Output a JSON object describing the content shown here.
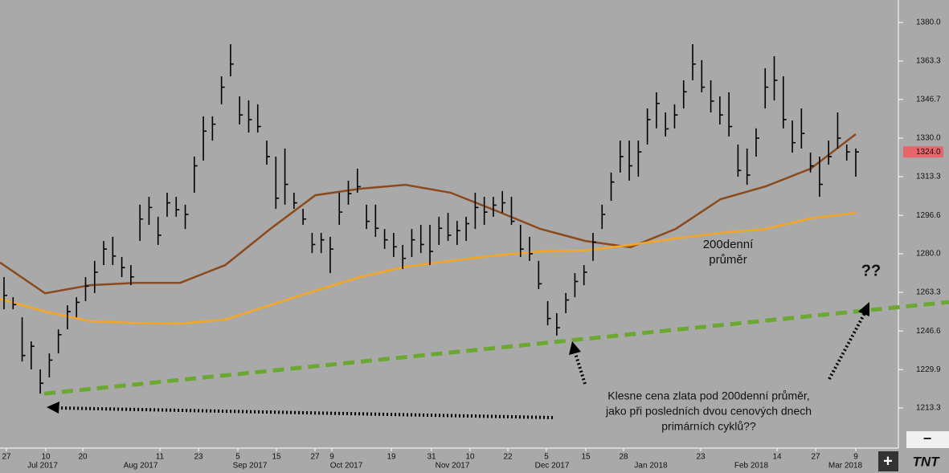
{
  "chart_data": {
    "type": "ohlc",
    "ylim": [
      1197.0,
      1389.7
    ],
    "yticks": [
      {
        "value": 1380,
        "label": "1380.0"
      },
      1363.3,
      1346.7,
      {
        "value": 1330,
        "label": "1330.0"
      },
      1313.3,
      1296.6,
      {
        "value": 1280,
        "label": "1280.0"
      },
      1263.3,
      1246.6,
      1229.9,
      1213.3
    ],
    "last_price": {
      "value": 1324,
      "label": "1324.0",
      "color": "#e8666b"
    },
    "bar_color": "#000000",
    "high": [
      1269.9,
      1261.2,
      1252.5,
      1242.1,
      1230.0,
      1236.9,
      1247.3,
      1257.7,
      1261.2,
      1269.9,
      1276.9,
      1285.5,
      1287.3,
      1278.6,
      1275.1,
      1301.2,
      1304.6,
      1296.0,
      1306.4,
      1304.6,
      1301.2,
      1322.0,
      1339.4,
      1339.4,
      1356.7,
      1370.6,
      1348.0,
      1346.3,
      1344.6,
      1328.9,
      1322.0,
      1325.5,
      1306.4,
      1299.4,
      1289.0,
      1289.0,
      1287.3,
      1306.4,
      1311.6,
      1316.8,
      1301.2,
      1301.2,
      1290.7,
      1289.0,
      1283.8,
      1290.7,
      1292.5,
      1292.5,
      1296.0,
      1297.7,
      1294.2,
      1296.0,
      1306.4,
      1304.6,
      1304.6,
      1307.1,
      1304.6,
      1292.5,
      1287.3,
      1276.9,
      1259.5,
      1254.3,
      1263.0,
      1271.6,
      1275.1,
      1289.0,
      1301.2,
      1315.1,
      1328.9,
      1328.9,
      1328.9,
      1342.8,
      1349.8,
      1341.1,
      1344.6,
      1355.0,
      1370.6,
      1363.7,
      1355.0,
      1348.0,
      1349.8,
      1327.2,
      1325.5,
      1334.2,
      1360.2,
      1365.4,
      1356.7,
      1337.6,
      1342.8,
      1323.7,
      1322.0,
      1328.9,
      1341.1,
      1327.2,
      1325.5
    ],
    "low": [
      1256.0,
      1256.0,
      1233.4,
      1230.0,
      1219.5,
      1226.5,
      1236.9,
      1247.3,
      1252.5,
      1259.5,
      1263.0,
      1275.1,
      1275.1,
      1269.9,
      1266.4,
      1285.5,
      1292.5,
      1283.8,
      1296.0,
      1296.0,
      1290.7,
      1306.4,
      1320.3,
      1328.9,
      1344.6,
      1356.7,
      1335.9,
      1332.4,
      1332.4,
      1318.5,
      1299.4,
      1301.2,
      1299.4,
      1292.5,
      1280.3,
      1280.3,
      1271.6,
      1292.5,
      1301.2,
      1306.4,
      1290.7,
      1287.3,
      1282.1,
      1278.6,
      1273.4,
      1278.6,
      1280.3,
      1275.1,
      1283.8,
      1285.5,
      1283.8,
      1285.5,
      1290.7,
      1292.5,
      1296.0,
      1297.7,
      1292.5,
      1278.6,
      1276.9,
      1264.7,
      1249.1,
      1244.6,
      1254.3,
      1261.2,
      1266.4,
      1276.9,
      1290.7,
      1302.9,
      1315.1,
      1311.6,
      1313.3,
      1327.2,
      1334.2,
      1330.7,
      1334.2,
      1342.8,
      1355.0,
      1349.8,
      1341.1,
      1335.9,
      1330.7,
      1313.3,
      1309.8,
      1322.0,
      1342.8,
      1346.3,
      1334.2,
      1323.7,
      1325.5,
      1315.1,
      1304.6,
      1318.5,
      1325.5,
      1320.3,
      1313.3
    ],
    "close": [
      1262,
      1258,
      1236,
      1240,
      1224,
      1234,
      1245,
      1255,
      1259,
      1266,
      1272,
      1282,
      1279,
      1274,
      1270,
      1295,
      1300,
      1288,
      1302,
      1299,
      1297,
      1318,
      1333,
      1336,
      1352,
      1362,
      1340,
      1338,
      1335,
      1322,
      1304,
      1310,
      1302,
      1295,
      1284,
      1286,
      1282,
      1298,
      1306,
      1309,
      1294,
      1291,
      1286,
      1283,
      1278,
      1286,
      1284,
      1281,
      1291,
      1288,
      1290,
      1293,
      1300,
      1298,
      1301,
      1302,
      1294,
      1282,
      1280,
      1267,
      1252,
      1248,
      1260,
      1268,
      1272,
      1285,
      1297,
      1311,
      1322,
      1318,
      1324,
      1338,
      1345,
      1334,
      1340,
      1350,
      1362,
      1352,
      1346,
      1340,
      1335,
      1316,
      1314,
      1330,
      1352,
      1355,
      1338,
      1328,
      1332,
      1318,
      1310,
      1322,
      1330,
      1324,
      1324
    ],
    "lines": [
      {
        "color": "#8b4a1e",
        "values": [
          1276.2,
          1262.9,
          1266.4,
          1267.4,
          1267.4,
          1275.1,
          1290.7,
          1305.3,
          1308.1,
          1309.8,
          1306.4,
          1298.7,
          1290.7,
          1285.5,
          1282.8,
          1290.7,
          1303.6,
          1309.1,
          1316.8,
          1331.7
        ]
      },
      {
        "color": "#f5a623",
        "values": [
          1260.5,
          1255.0,
          1250.8,
          1250.1,
          1249.8,
          1251.5,
          1257.8,
          1264.0,
          1269.9,
          1274.4,
          1276.9,
          1279.3,
          1281.0,
          1281.4,
          1283.8,
          1286.6,
          1289.0,
          1290.7,
          1295.3,
          1297.7
        ]
      }
    ],
    "trendline": {
      "color": "#6aa832",
      "values": [
        1219.5,
        1259.1
      ]
    },
    "annotations": {
      "ma_label": [
        "200denní",
        "průměr"
      ],
      "question": "??",
      "note": [
        "Klesne cena zlata pod 200denní průměr,",
        "jako při posledních dvou cenových dnech",
        "primárních cyklů??"
      ]
    },
    "x_day_labels": [
      "27",
      "10",
      "20",
      "11",
      "23",
      "5",
      "15",
      "27",
      "9",
      "19",
      "31",
      "10",
      "22",
      "5",
      "15",
      "28",
      "23",
      "14",
      "27",
      "9"
    ],
    "x_month_labels": [
      "Jul 2017",
      "Aug 2017",
      "Sep 2017",
      "Oct 2017",
      "Nov 2017",
      "Dec 2017",
      "Jan 2018",
      "Feb 2018",
      "Mar 2018"
    ],
    "controls": {
      "zoom_out": "−",
      "zoom_in": "+",
      "logo": "TNT"
    }
  }
}
